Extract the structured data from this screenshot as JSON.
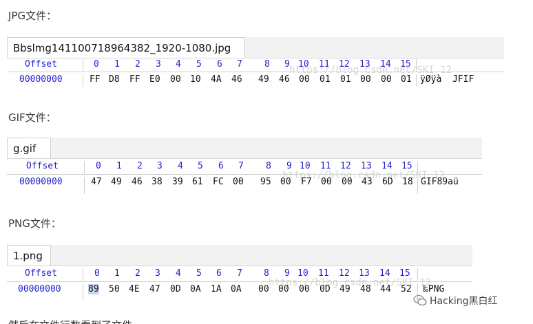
{
  "sections": {
    "jpg": {
      "title": "JPG文件：",
      "tab": "Bbslmg141100718964382_1920-1080.jpg",
      "offset_label": "Offset",
      "columns": [
        "0",
        "1",
        "2",
        "3",
        "4",
        "5",
        "6",
        "7",
        "8",
        "9",
        "10",
        "11",
        "12",
        "13",
        "14",
        "15"
      ],
      "row_offset": "00000000",
      "bytes": [
        "FF",
        "D8",
        "FF",
        "E0",
        "00",
        "10",
        "4A",
        "46",
        "49",
        "46",
        "00",
        "01",
        "01",
        "00",
        "00",
        "01"
      ],
      "ascii": "ÿØÿà  JFIF",
      "watermark": "https://blog.csdn.net/SKI_12"
    },
    "gif": {
      "title": "GIF文件：",
      "tab": "g.gif",
      "offset_label": "Offset",
      "columns": [
        "0",
        "1",
        "2",
        "3",
        "4",
        "5",
        "6",
        "7",
        "8",
        "9",
        "10",
        "11",
        "12",
        "13",
        "14",
        "15"
      ],
      "row_offset": "00000000",
      "bytes": [
        "47",
        "49",
        "46",
        "38",
        "39",
        "61",
        "FC",
        "00",
        "95",
        "00",
        "F7",
        "00",
        "00",
        "43",
        "6D",
        "18"
      ],
      "ascii": "GIF89aü",
      "watermark": "https://blog.csdn.net/SKI_12"
    },
    "png": {
      "title": "PNG文件：",
      "tab": "1.png",
      "offset_label": "Offset",
      "columns": [
        "0",
        "1",
        "2",
        "3",
        "4",
        "5",
        "6",
        "7",
        "8",
        "9",
        "10",
        "11",
        "12",
        "13",
        "14",
        "15"
      ],
      "row_offset": "00000000",
      "bytes": [
        "89",
        "50",
        "4E",
        "47",
        "0D",
        "0A",
        "1A",
        "0A",
        "00",
        "00",
        "00",
        "0D",
        "49",
        "48",
        "44",
        "52"
      ],
      "ascii": "‰PNG",
      "watermark": "https://blog.csdn.net/SKI_12"
    }
  },
  "brand": {
    "text": "Hacking黑白红",
    "icon": "wechat-icon"
  },
  "footer_cut": "然后在文件行数看到了文件..."
}
